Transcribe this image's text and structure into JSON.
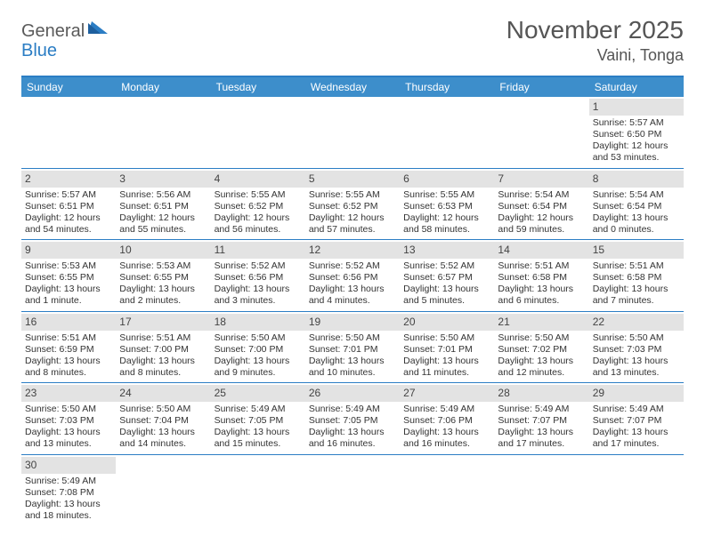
{
  "logo": {
    "text1": "General",
    "text2": "Blue"
  },
  "title": "November 2025",
  "location": "Vaini, Tonga",
  "colors": {
    "header_bg": "#3d8ecb",
    "border": "#2b7dc4",
    "daynum_bg": "#e3e3e3",
    "text": "#333333",
    "title_text": "#555555"
  },
  "day_names": [
    "Sunday",
    "Monday",
    "Tuesday",
    "Wednesday",
    "Thursday",
    "Friday",
    "Saturday"
  ],
  "weeks": [
    [
      {
        "blank": true
      },
      {
        "blank": true
      },
      {
        "blank": true
      },
      {
        "blank": true
      },
      {
        "blank": true
      },
      {
        "blank": true
      },
      {
        "day": "1",
        "sunrise": "Sunrise: 5:57 AM",
        "sunset": "Sunset: 6:50 PM",
        "daylight": "Daylight: 12 hours and 53 minutes."
      }
    ],
    [
      {
        "day": "2",
        "sunrise": "Sunrise: 5:57 AM",
        "sunset": "Sunset: 6:51 PM",
        "daylight": "Daylight: 12 hours and 54 minutes."
      },
      {
        "day": "3",
        "sunrise": "Sunrise: 5:56 AM",
        "sunset": "Sunset: 6:51 PM",
        "daylight": "Daylight: 12 hours and 55 minutes."
      },
      {
        "day": "4",
        "sunrise": "Sunrise: 5:55 AM",
        "sunset": "Sunset: 6:52 PM",
        "daylight": "Daylight: 12 hours and 56 minutes."
      },
      {
        "day": "5",
        "sunrise": "Sunrise: 5:55 AM",
        "sunset": "Sunset: 6:52 PM",
        "daylight": "Daylight: 12 hours and 57 minutes."
      },
      {
        "day": "6",
        "sunrise": "Sunrise: 5:55 AM",
        "sunset": "Sunset: 6:53 PM",
        "daylight": "Daylight: 12 hours and 58 minutes."
      },
      {
        "day": "7",
        "sunrise": "Sunrise: 5:54 AM",
        "sunset": "Sunset: 6:54 PM",
        "daylight": "Daylight: 12 hours and 59 minutes."
      },
      {
        "day": "8",
        "sunrise": "Sunrise: 5:54 AM",
        "sunset": "Sunset: 6:54 PM",
        "daylight": "Daylight: 13 hours and 0 minutes."
      }
    ],
    [
      {
        "day": "9",
        "sunrise": "Sunrise: 5:53 AM",
        "sunset": "Sunset: 6:55 PM",
        "daylight": "Daylight: 13 hours and 1 minute."
      },
      {
        "day": "10",
        "sunrise": "Sunrise: 5:53 AM",
        "sunset": "Sunset: 6:55 PM",
        "daylight": "Daylight: 13 hours and 2 minutes."
      },
      {
        "day": "11",
        "sunrise": "Sunrise: 5:52 AM",
        "sunset": "Sunset: 6:56 PM",
        "daylight": "Daylight: 13 hours and 3 minutes."
      },
      {
        "day": "12",
        "sunrise": "Sunrise: 5:52 AM",
        "sunset": "Sunset: 6:56 PM",
        "daylight": "Daylight: 13 hours and 4 minutes."
      },
      {
        "day": "13",
        "sunrise": "Sunrise: 5:52 AM",
        "sunset": "Sunset: 6:57 PM",
        "daylight": "Daylight: 13 hours and 5 minutes."
      },
      {
        "day": "14",
        "sunrise": "Sunrise: 5:51 AM",
        "sunset": "Sunset: 6:58 PM",
        "daylight": "Daylight: 13 hours and 6 minutes."
      },
      {
        "day": "15",
        "sunrise": "Sunrise: 5:51 AM",
        "sunset": "Sunset: 6:58 PM",
        "daylight": "Daylight: 13 hours and 7 minutes."
      }
    ],
    [
      {
        "day": "16",
        "sunrise": "Sunrise: 5:51 AM",
        "sunset": "Sunset: 6:59 PM",
        "daylight": "Daylight: 13 hours and 8 minutes."
      },
      {
        "day": "17",
        "sunrise": "Sunrise: 5:51 AM",
        "sunset": "Sunset: 7:00 PM",
        "daylight": "Daylight: 13 hours and 8 minutes."
      },
      {
        "day": "18",
        "sunrise": "Sunrise: 5:50 AM",
        "sunset": "Sunset: 7:00 PM",
        "daylight": "Daylight: 13 hours and 9 minutes."
      },
      {
        "day": "19",
        "sunrise": "Sunrise: 5:50 AM",
        "sunset": "Sunset: 7:01 PM",
        "daylight": "Daylight: 13 hours and 10 minutes."
      },
      {
        "day": "20",
        "sunrise": "Sunrise: 5:50 AM",
        "sunset": "Sunset: 7:01 PM",
        "daylight": "Daylight: 13 hours and 11 minutes."
      },
      {
        "day": "21",
        "sunrise": "Sunrise: 5:50 AM",
        "sunset": "Sunset: 7:02 PM",
        "daylight": "Daylight: 13 hours and 12 minutes."
      },
      {
        "day": "22",
        "sunrise": "Sunrise: 5:50 AM",
        "sunset": "Sunset: 7:03 PM",
        "daylight": "Daylight: 13 hours and 13 minutes."
      }
    ],
    [
      {
        "day": "23",
        "sunrise": "Sunrise: 5:50 AM",
        "sunset": "Sunset: 7:03 PM",
        "daylight": "Daylight: 13 hours and 13 minutes."
      },
      {
        "day": "24",
        "sunrise": "Sunrise: 5:50 AM",
        "sunset": "Sunset: 7:04 PM",
        "daylight": "Daylight: 13 hours and 14 minutes."
      },
      {
        "day": "25",
        "sunrise": "Sunrise: 5:49 AM",
        "sunset": "Sunset: 7:05 PM",
        "daylight": "Daylight: 13 hours and 15 minutes."
      },
      {
        "day": "26",
        "sunrise": "Sunrise: 5:49 AM",
        "sunset": "Sunset: 7:05 PM",
        "daylight": "Daylight: 13 hours and 16 minutes."
      },
      {
        "day": "27",
        "sunrise": "Sunrise: 5:49 AM",
        "sunset": "Sunset: 7:06 PM",
        "daylight": "Daylight: 13 hours and 16 minutes."
      },
      {
        "day": "28",
        "sunrise": "Sunrise: 5:49 AM",
        "sunset": "Sunset: 7:07 PM",
        "daylight": "Daylight: 13 hours and 17 minutes."
      },
      {
        "day": "29",
        "sunrise": "Sunrise: 5:49 AM",
        "sunset": "Sunset: 7:07 PM",
        "daylight": "Daylight: 13 hours and 17 minutes."
      }
    ],
    [
      {
        "day": "30",
        "sunrise": "Sunrise: 5:49 AM",
        "sunset": "Sunset: 7:08 PM",
        "daylight": "Daylight: 13 hours and 18 minutes."
      },
      {
        "blank": true
      },
      {
        "blank": true
      },
      {
        "blank": true
      },
      {
        "blank": true
      },
      {
        "blank": true
      },
      {
        "blank": true
      }
    ]
  ]
}
